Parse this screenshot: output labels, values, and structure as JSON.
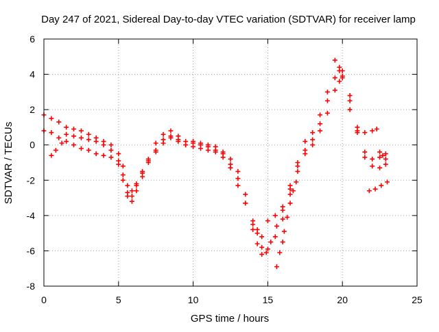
{
  "chart_data": {
    "type": "scatter",
    "title": "Day 247 of 2021, Sidereal Day-to-day VTEC variation (SDTVAR) for receiver lamp",
    "xlabel": "GPS time / hours",
    "ylabel": "SDTVAR / TECUs",
    "xlim": [
      0,
      25
    ],
    "ylim": [
      -8,
      6
    ],
    "x_ticks": [
      0,
      5,
      10,
      15,
      20,
      25
    ],
    "y_ticks": [
      -8,
      -6,
      -4,
      -2,
      0,
      2,
      4,
      6
    ],
    "x_tick_labels": [
      "0",
      "5",
      "10",
      "15",
      "20",
      "25"
    ],
    "y_tick_labels": [
      "-8",
      "-6",
      "-4",
      "-2",
      "0",
      "2",
      "4",
      "6"
    ],
    "grid": true,
    "marker": "+",
    "colors": {
      "series": "#ff0000",
      "grid": "#a0a0a0",
      "axis": "#000000"
    },
    "series": [
      {
        "values": [
          [
            0.0,
            1.7
          ],
          [
            0.5,
            1.5
          ],
          [
            1.0,
            1.3
          ],
          [
            1.5,
            1.0
          ],
          [
            2.0,
            0.9
          ],
          [
            2.5,
            0.8
          ],
          [
            3.0,
            0.6
          ],
          [
            3.5,
            0.4
          ],
          [
            4.0,
            0.2
          ],
          [
            4.5,
            0.0
          ],
          [
            5.0,
            -0.5
          ],
          [
            5.3,
            -1.2
          ],
          [
            5.6,
            -2.3
          ],
          [
            5.9,
            -2.6
          ],
          [
            6.2,
            -2.2
          ],
          [
            6.6,
            -1.5
          ],
          [
            7.0,
            -0.8
          ],
          [
            7.5,
            0.1
          ],
          [
            8.0,
            0.6
          ],
          [
            8.5,
            0.8
          ],
          [
            9.0,
            0.5
          ],
          [
            9.5,
            0.2
          ],
          [
            10.0,
            0.2
          ],
          [
            10.5,
            0.1
          ],
          [
            11.0,
            0.0
          ],
          [
            11.5,
            -0.1
          ],
          [
            12.0,
            -0.4
          ],
          [
            12.5,
            -0.8
          ],
          [
            13.0,
            -1.5
          ],
          [
            13.5,
            -2.8
          ],
          [
            14.0,
            -4.8
          ],
          [
            14.3,
            -5.6
          ],
          [
            14.6,
            -5.2
          ],
          [
            15.0,
            -4.3
          ],
          [
            15.5,
            -4.0
          ],
          [
            16.0,
            -3.5
          ],
          [
            16.5,
            -2.5
          ],
          [
            17.0,
            -1.2
          ],
          [
            17.5,
            0.2
          ],
          [
            18.0,
            0.7
          ],
          [
            18.5,
            1.7
          ],
          [
            19.0,
            3.0
          ],
          [
            19.5,
            4.8
          ],
          [
            19.8,
            4.4
          ],
          [
            20.0,
            4.2
          ],
          [
            20.5,
            2.0
          ],
          [
            21.0,
            0.8
          ],
          [
            21.5,
            0.7
          ],
          [
            22.0,
            0.8
          ],
          [
            22.3,
            0.9
          ]
        ]
      },
      {
        "values": [
          [
            0.0,
            0.8
          ],
          [
            0.5,
            0.7
          ],
          [
            1.0,
            0.4
          ],
          [
            1.5,
            0.6
          ],
          [
            2.0,
            0.5
          ],
          [
            2.5,
            0.4
          ],
          [
            3.0,
            0.3
          ],
          [
            3.5,
            0.2
          ],
          [
            4.0,
            0.0
          ],
          [
            4.5,
            -0.3
          ],
          [
            5.0,
            -0.9
          ],
          [
            5.3,
            -1.7
          ],
          [
            5.6,
            -2.9
          ],
          [
            5.9,
            -3.2
          ],
          [
            6.2,
            -2.6
          ],
          [
            6.6,
            -1.8
          ],
          [
            7.0,
            -1.0
          ],
          [
            7.5,
            -0.3
          ],
          [
            8.0,
            0.3
          ],
          [
            8.5,
            0.5
          ],
          [
            9.0,
            0.3
          ],
          [
            9.5,
            0.0
          ],
          [
            10.0,
            0.1
          ],
          [
            10.5,
            0.0
          ],
          [
            11.0,
            -0.1
          ],
          [
            11.5,
            -0.3
          ],
          [
            12.0,
            -0.5
          ],
          [
            12.5,
            -1.1
          ],
          [
            13.0,
            -1.9
          ],
          [
            13.5,
            -3.3
          ],
          [
            14.0,
            -4.5
          ],
          [
            14.3,
            -5.0
          ],
          [
            14.6,
            -5.8
          ],
          [
            15.0,
            -5.9
          ],
          [
            15.5,
            -5.2
          ],
          [
            16.0,
            -4.2
          ],
          [
            16.5,
            -2.8
          ],
          [
            17.0,
            -1.5
          ],
          [
            17.5,
            -0.5
          ],
          [
            18.0,
            0.3
          ],
          [
            18.5,
            1.2
          ],
          [
            19.0,
            2.5
          ],
          [
            19.5,
            3.8
          ],
          [
            19.8,
            4.2
          ],
          [
            20.0,
            3.9
          ],
          [
            20.5,
            2.8
          ],
          [
            21.0,
            1.0
          ],
          [
            21.5,
            -0.4
          ],
          [
            22.0,
            -0.8
          ],
          [
            22.5,
            -0.7
          ],
          [
            22.9,
            -0.5
          ]
        ]
      },
      {
        "values": [
          [
            0.5,
            -0.6
          ],
          [
            0.8,
            -0.3
          ],
          [
            1.2,
            0.1
          ],
          [
            1.5,
            0.2
          ],
          [
            2.0,
            0.0
          ],
          [
            2.5,
            -0.2
          ],
          [
            3.0,
            -0.3
          ],
          [
            3.5,
            -0.5
          ],
          [
            4.0,
            -0.6
          ],
          [
            4.5,
            -0.7
          ],
          [
            5.0,
            -1.1
          ],
          [
            5.3,
            -2.0
          ],
          [
            5.6,
            -2.7
          ],
          [
            5.9,
            -2.9
          ],
          [
            6.2,
            -2.3
          ],
          [
            6.6,
            -1.6
          ],
          [
            7.0,
            -0.9
          ],
          [
            7.5,
            -0.4
          ],
          [
            8.0,
            0.1
          ],
          [
            8.5,
            0.4
          ],
          [
            9.0,
            0.2
          ],
          [
            9.5,
            0.0
          ],
          [
            10.0,
            -0.1
          ],
          [
            10.5,
            -0.2
          ],
          [
            11.0,
            -0.3
          ],
          [
            11.5,
            -0.4
          ],
          [
            12.0,
            -0.7
          ],
          [
            12.5,
            -1.3
          ],
          [
            13.0,
            -2.3
          ],
          [
            13.5,
            -3.3
          ],
          [
            14.0,
            -4.3
          ],
          [
            14.3,
            -4.8
          ],
          [
            14.6,
            -6.2
          ],
          [
            14.9,
            -6.1
          ],
          [
            15.2,
            -5.5
          ],
          [
            15.6,
            -4.6
          ],
          [
            16.0,
            -3.7
          ],
          [
            16.5,
            -2.3
          ],
          [
            17.0,
            -1.0
          ],
          [
            17.5,
            -0.3
          ],
          [
            18.0,
            0.0
          ],
          [
            18.5,
            0.8
          ],
          [
            19.0,
            1.8
          ],
          [
            19.5,
            3.1
          ],
          [
            19.8,
            3.6
          ],
          [
            20.0,
            3.8
          ],
          [
            20.5,
            2.5
          ],
          [
            21.0,
            0.7
          ],
          [
            21.5,
            -0.7
          ],
          [
            22.0,
            -1.2
          ],
          [
            22.5,
            -1.3
          ],
          [
            22.9,
            -1.1
          ]
        ]
      },
      {
        "values": [
          [
            15.6,
            -6.9
          ],
          [
            15.8,
            -6.1
          ],
          [
            16.0,
            -5.5
          ],
          [
            16.1,
            -4.9
          ],
          [
            16.3,
            -4.1
          ],
          [
            16.5,
            -3.3
          ],
          [
            16.7,
            -2.6
          ],
          [
            16.9,
            -2.1
          ]
        ]
      },
      {
        "values": [
          [
            21.8,
            -2.6
          ],
          [
            22.2,
            -2.5
          ],
          [
            22.6,
            -2.3
          ],
          [
            23.0,
            -2.1
          ]
        ]
      },
      {
        "values": [
          [
            22.5,
            -0.4
          ],
          [
            22.7,
            -0.6
          ],
          [
            22.9,
            -0.8
          ]
        ]
      }
    ]
  }
}
